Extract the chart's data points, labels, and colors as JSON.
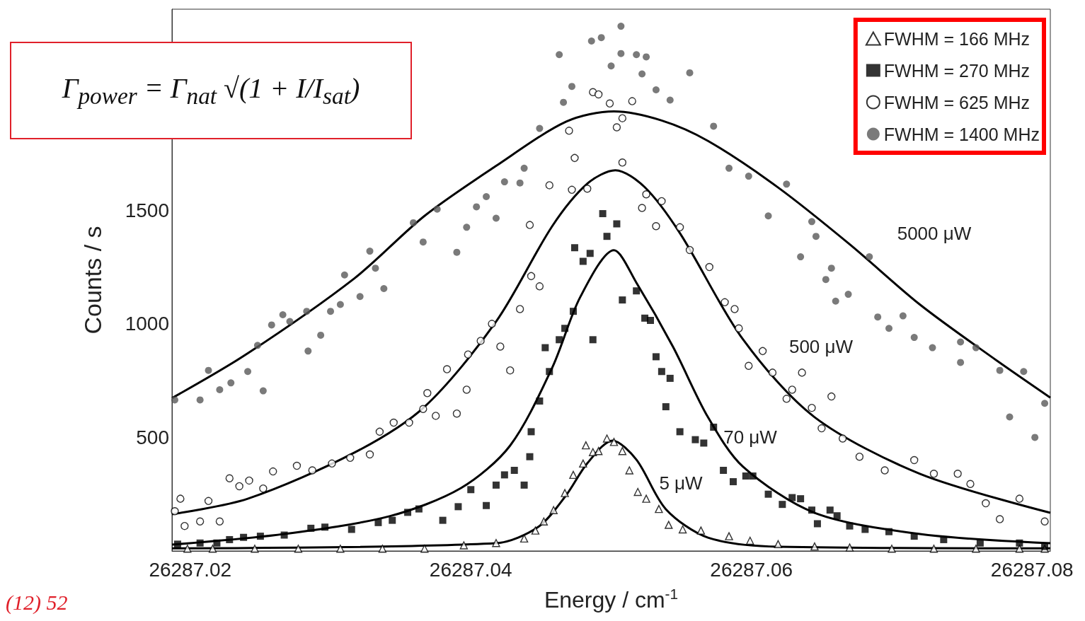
{
  "chart_data": {
    "type": "scatter",
    "xlabel": "Energy / cm$^{-1}$",
    "ylabel": "Counts / s",
    "xlim": [
      26287.0187,
      26287.0813
    ],
    "ylim": [
      0,
      2385
    ],
    "xticks": [
      26287.02,
      26287.04,
      26287.06,
      26287.08
    ],
    "yticks": [
      500,
      1000,
      1500
    ],
    "grid": false,
    "legend": "top right",
    "annotations": [
      "Γ$_{power}$ = Γ$_{nat}$ √(1 + I/I$_{sat}$)",
      "(12) 52",
      "5000 μW",
      "500 μW",
      "70 μW",
      "5 μW"
    ],
    "series": [
      {
        "name": "FWHM = 166 MHz",
        "marker": "triangle",
        "color": "#000000",
        "x": [
          26287.0198,
          26287.0216,
          26287.0246,
          26287.0277,
          26287.0307,
          26287.0337,
          26287.0367,
          26287.0395,
          26287.0418,
          26287.0438,
          26287.0446,
          26287.0452,
          26287.0459,
          26287.0467,
          26287.0473,
          26287.048,
          26287.0482,
          26287.0487,
          26287.0491,
          26287.0497,
          26287.0502,
          26287.0508,
          26287.0513,
          26287.0519,
          26287.0525,
          26287.0534,
          26287.0541,
          26287.0551,
          26287.0564,
          26287.0584,
          26287.0599,
          26287.0619,
          26287.0645,
          26287.067,
          26287.07,
          26287.073,
          26287.076,
          26287.0791,
          26287.0809
        ],
        "values": [
          10,
          10,
          10,
          10,
          10,
          10,
          10,
          25,
          35,
          55,
          90,
          130,
          180,
          255,
          335,
          385,
          465,
          435,
          440,
          495,
          480,
          440,
          355,
          260,
          230,
          185,
          115,
          95,
          90,
          65,
          45,
          30,
          20,
          15,
          10,
          10,
          10,
          10,
          10
        ]
      },
      {
        "name": "FWHM = 270 MHz",
        "marker": "square",
        "color": "#000000",
        "x": [
          26287.0191,
          26287.0207,
          26287.0219,
          26287.0228,
          26287.0238,
          26287.025,
          26287.0267,
          26287.0286,
          26287.0296,
          26287.0315,
          26287.0334,
          26287.0344,
          26287.0355,
          26287.0363,
          26287.038,
          26287.0391,
          26287.04,
          26287.0411,
          26287.0418,
          26287.0424,
          26287.0431,
          26287.0438,
          26287.0442,
          26287.0443,
          26287.0449,
          26287.0453,
          26287.0456,
          26287.0463,
          26287.0467,
          26287.0473,
          26287.0474,
          26287.048,
          26287.0485,
          26287.0487,
          26287.0494,
          26287.0497,
          26287.0504,
          26287.0508,
          26287.0518,
          26287.0524,
          26287.0528,
          26287.0532,
          26287.0536,
          26287.0539,
          26287.0542,
          26287.0549,
          26287.056,
          26287.0566,
          26287.0573,
          26287.058,
          26287.0587,
          26287.0596,
          26287.0601,
          26287.0612,
          26287.0622,
          26287.0629,
          26287.0635,
          26287.0643,
          26287.0647,
          26287.0656,
          26287.0661,
          26287.067,
          26287.0681,
          26287.0698,
          26287.0716,
          26287.0737,
          26287.0763,
          26287.0791,
          26287.0809
        ],
        "values": [
          30,
          35,
          35,
          50,
          60,
          65,
          70,
          100,
          105,
          95,
          125,
          135,
          170,
          185,
          135,
          195,
          270,
          200,
          290,
          335,
          355,
          290,
          415,
          525,
          660,
          895,
          790,
          930,
          980,
          1055,
          1335,
          1275,
          1310,
          930,
          1485,
          1385,
          1440,
          1105,
          1145,
          1025,
          1015,
          855,
          790,
          635,
          760,
          525,
          490,
          475,
          545,
          355,
          305,
          330,
          330,
          250,
          205,
          235,
          230,
          180,
          120,
          180,
          155,
          110,
          95,
          85,
          65,
          50,
          35,
          35,
          20
        ]
      },
      {
        "name": "FWHM = 625 MHz",
        "marker": "circle",
        "color": "#000000",
        "x": [
          26287.0189,
          26287.0193,
          26287.0196,
          26287.0207,
          26287.0213,
          26287.0221,
          26287.0228,
          26287.0235,
          26287.0242,
          26287.0252,
          26287.0259,
          26287.0276,
          26287.0287,
          26287.0301,
          26287.0314,
          26287.0328,
          26287.0335,
          26287.0345,
          26287.0356,
          26287.0366,
          26287.0369,
          26287.0375,
          26287.0383,
          26287.039,
          26287.0397,
          26287.0398,
          26287.0407,
          26287.0415,
          26287.0421,
          26287.0428,
          26287.0435,
          26287.0442,
          26287.0443,
          26287.0449,
          26287.0456,
          26287.047,
          26287.0472,
          26287.0474,
          26287.0483,
          26287.0487,
          26287.0491,
          26287.0499,
          26287.0504,
          26287.0508,
          26287.0508,
          26287.0515,
          26287.0522,
          26287.0525,
          26287.0532,
          26287.0536,
          26287.0549,
          26287.0556,
          26287.057,
          26287.0581,
          26287.0588,
          26287.0591,
          26287.0598,
          26287.0608,
          26287.0615,
          26287.0625,
          26287.0629,
          26287.0636,
          26287.0643,
          26287.065,
          26287.0657,
          26287.0665,
          26287.0677,
          26287.0695,
          26287.0716,
          26287.073,
          26287.0747,
          26287.0756,
          26287.0767,
          26287.0777,
          26287.0791,
          26287.0809
        ],
        "values": [
          175,
          230,
          110,
          130,
          220,
          130,
          320,
          285,
          310,
          275,
          350,
          375,
          355,
          385,
          410,
          425,
          525,
          565,
          565,
          625,
          695,
          595,
          800,
          605,
          710,
          865,
          925,
          1000,
          900,
          795,
          1065,
          1435,
          1210,
          1165,
          1610,
          1850,
          1590,
          1730,
          1595,
          2020,
          2010,
          1970,
          1865,
          1905,
          1710,
          1980,
          1510,
          1570,
          1430,
          1540,
          1425,
          1325,
          1250,
          1095,
          1065,
          980,
          815,
          880,
          785,
          670,
          710,
          785,
          630,
          540,
          680,
          495,
          415,
          355,
          400,
          340,
          340,
          295,
          210,
          140,
          230,
          130
        ]
      },
      {
        "name": "FWHM = 1400 MHz",
        "marker": "circle",
        "color": "#595959",
        "x": [
          26287.0189,
          26287.0207,
          26287.0213,
          26287.0221,
          26287.0229,
          26287.0241,
          26287.0248,
          26287.0252,
          26287.0258,
          26287.0266,
          26287.0271,
          26287.0283,
          26287.0284,
          26287.0293,
          26287.03,
          26287.0307,
          26287.031,
          26287.0321,
          26287.0328,
          26287.0332,
          26287.0338,
          26287.0359,
          26287.0366,
          26287.0376,
          26287.039,
          26287.0397,
          26287.0404,
          26287.0411,
          26287.0418,
          26287.0424,
          26287.0435,
          26287.0438,
          26287.0449,
          26287.0463,
          26287.0466,
          26287.0472,
          26287.0486,
          26287.0493,
          26287.05,
          26287.0507,
          26287.0507,
          26287.0518,
          26287.0522,
          26287.0525,
          26287.0532,
          26287.0542,
          26287.0556,
          26287.0573,
          26287.0584,
          26287.0598,
          26287.0612,
          26287.0625,
          26287.0635,
          26287.0643,
          26287.0646,
          26287.0653,
          26287.0657,
          26287.066,
          26287.0669,
          26287.0684,
          26287.069,
          26287.0698,
          26287.0708,
          26287.0716,
          26287.0729,
          26287.0749,
          26287.0749,
          26287.076,
          26287.0777,
          26287.0784,
          26287.0794,
          26287.0802,
          26287.0809
        ],
        "values": [
          665,
          665,
          795,
          710,
          740,
          790,
          905,
          705,
          995,
          1040,
          1010,
          1055,
          880,
          950,
          1055,
          1085,
          1215,
          1120,
          1320,
          1245,
          1155,
          1445,
          1360,
          1505,
          1315,
          1425,
          1515,
          1560,
          1465,
          1625,
          1620,
          1685,
          1860,
          2185,
          1975,
          2045,
          2245,
          2260,
          2135,
          2190,
          2310,
          2185,
          2100,
          2175,
          2030,
          1985,
          2105,
          1870,
          1685,
          1650,
          1475,
          1615,
          1295,
          1450,
          1385,
          1195,
          1245,
          1100,
          1130,
          1295,
          1030,
          980,
          1035,
          940,
          895,
          920,
          830,
          895,
          795,
          590,
          790,
          500,
          650
        ]
      },
      {
        "type": "line",
        "marker": "none",
        "line_style": "solid",
        "color": "#000000",
        "x": [
          26287.0187,
          26287.0241,
          26287.0317,
          26287.0367,
          26287.0418,
          26287.0468,
          26287.0502,
          26287.0536,
          26287.0569,
          26287.0619,
          26287.067,
          26287.072,
          26287.0771,
          26287.0813
        ],
        "values": [
          673,
          870,
          1200,
          1475,
          1695,
          1890,
          1935,
          1895,
          1805,
          1600,
          1350,
          1085,
          855,
          675
        ]
      },
      {
        "type": "line",
        "marker": "none",
        "line_style": "solid",
        "color": "#000000",
        "x": [
          26287.0187,
          26287.0241,
          26287.0317,
          26287.0367,
          26287.0418,
          26287.0458,
          26287.0483,
          26287.0503,
          26287.0524,
          26287.0549,
          26287.0594,
          26287.0645,
          26287.072,
          26287.0813
        ],
        "values": [
          162,
          230,
          433,
          635,
          1010,
          1430,
          1617,
          1676,
          1601,
          1399,
          931,
          589,
          340,
          168
        ]
      },
      {
        "type": "line",
        "marker": "none",
        "line_style": "solid",
        "color": "#000000",
        "x": [
          26287.0187,
          26287.0267,
          26287.0342,
          26287.0393,
          26287.0428,
          26287.0458,
          26287.0478,
          26287.0502,
          26287.0518,
          26287.0544,
          26287.0569,
          26287.0594,
          26287.0645,
          26287.072,
          26287.0813
        ],
        "values": [
          28,
          75,
          153,
          277,
          464,
          807,
          1118,
          1324,
          1181,
          900,
          589,
          371,
          168,
          75,
          34
        ]
      },
      {
        "type": "line",
        "marker": "none",
        "line_style": "solid",
        "color": "#000000",
        "x": [
          26287.0187,
          26287.0418,
          26287.0448,
          26287.0468,
          26287.0483,
          26287.0501,
          26287.0518,
          26287.0539,
          26287.0569,
          26287.0619,
          26287.0813
        ],
        "values": [
          12,
          34,
          106,
          246,
          386,
          486,
          402,
          184,
          59,
          19,
          12
        ]
      }
    ]
  }
}
